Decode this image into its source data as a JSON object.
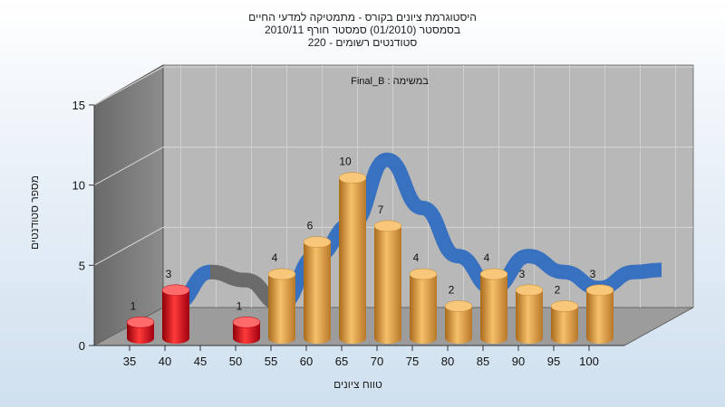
{
  "chart_data": {
    "type": "bar",
    "title_lines": [
      "היסטוגרמת ציונים בקורס - מתמטיקה למדעי החיים",
      "בסמסטר  (01/2010)  סמסטר חורף 2010/11",
      "סטודנטים רשומים - 220"
    ],
    "legend": "Final_B : במשימה",
    "xlabel": "טווח ציונים",
    "ylabel": "מספר סטודנטים",
    "ylim": [
      0,
      15
    ],
    "y_ticks": [
      "0",
      "5",
      "10",
      "15"
    ],
    "categories": [
      "35",
      "40",
      "45",
      "50",
      "55",
      "60",
      "65",
      "70",
      "75",
      "80",
      "85",
      "90",
      "95",
      "100"
    ],
    "values": [
      1,
      3,
      null,
      1,
      4,
      6,
      10,
      7,
      4,
      2,
      4,
      3,
      2,
      3
    ],
    "value_labels": [
      "1",
      "3",
      "",
      "1",
      "4",
      "6",
      "10",
      "7",
      "4",
      "2",
      "4",
      "3",
      "2",
      "3"
    ],
    "colors": {
      "failing": "#e8141c",
      "passing": "#e9a64a",
      "curve": "#2f6dbf",
      "curve_back": "#6b6b6b"
    },
    "fail_threshold": 55,
    "grid": true
  }
}
